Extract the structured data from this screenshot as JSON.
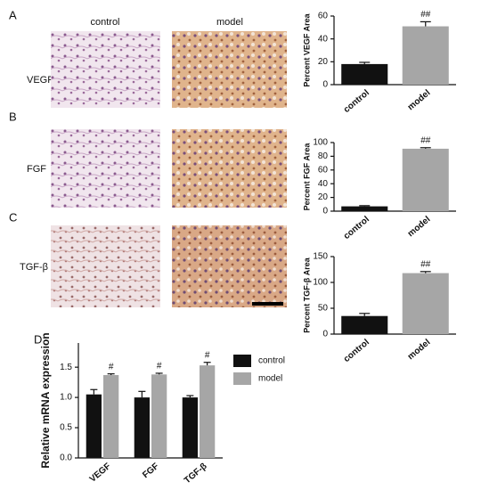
{
  "panel_labels": [
    "A",
    "B",
    "C",
    "D"
  ],
  "images": {
    "columns": [
      "control",
      "model"
    ],
    "rows": [
      "VEGF",
      "FGF",
      "TGF-β"
    ]
  },
  "chart_data": [
    {
      "type": "bar",
      "ylabel": "Percent VEGF Area",
      "categories": [
        "control",
        "model"
      ],
      "values": [
        18,
        51
      ],
      "errors": [
        1.5,
        4
      ],
      "colors": [
        "#111111",
        "#a6a6a6"
      ],
      "value_annotations": [
        null,
        "##"
      ],
      "ylim": [
        0,
        60
      ],
      "yticks": [
        0,
        20,
        40,
        60
      ]
    },
    {
      "type": "bar",
      "ylabel": "Percent FGF Area",
      "categories": [
        "control",
        "model"
      ],
      "values": [
        7,
        91
      ],
      "errors": [
        1,
        1.5
      ],
      "colors": [
        "#111111",
        "#a6a6a6"
      ],
      "value_annotations": [
        null,
        "##"
      ],
      "ylim": [
        0,
        100
      ],
      "yticks": [
        0,
        20,
        40,
        60,
        80,
        100
      ]
    },
    {
      "type": "bar",
      "ylabel": "Percent TGF-β Area",
      "categories": [
        "control",
        "model"
      ],
      "values": [
        35,
        118
      ],
      "errors": [
        5,
        3
      ],
      "colors": [
        "#111111",
        "#a6a6a6"
      ],
      "value_annotations": [
        null,
        "##"
      ],
      "ylim": [
        0,
        150
      ],
      "yticks": [
        0,
        50,
        100,
        150
      ]
    },
    {
      "type": "grouped-bar",
      "ylabel": "Relative mRNA expression",
      "categories": [
        "VEGF",
        "FGF",
        "TGF-β"
      ],
      "series": [
        {
          "name": "control",
          "color": "#111111",
          "values": [
            1.05,
            1.0,
            1.0
          ],
          "errors": [
            0.08,
            0.1,
            0.03
          ],
          "annotations": [
            null,
            null,
            null
          ]
        },
        {
          "name": "model",
          "color": "#a6a6a6",
          "values": [
            1.37,
            1.38,
            1.53
          ],
          "errors": [
            0.02,
            0.02,
            0.05
          ],
          "annotations": [
            "#",
            "#",
            "#"
          ]
        }
      ],
      "ylim": [
        0,
        1.9
      ],
      "yticks": [
        {
          "value": 0,
          "label": "0.0"
        },
        0.5,
        {
          "value": 1,
          "label": "1.0"
        },
        1.5
      ],
      "legend": "right"
    }
  ]
}
